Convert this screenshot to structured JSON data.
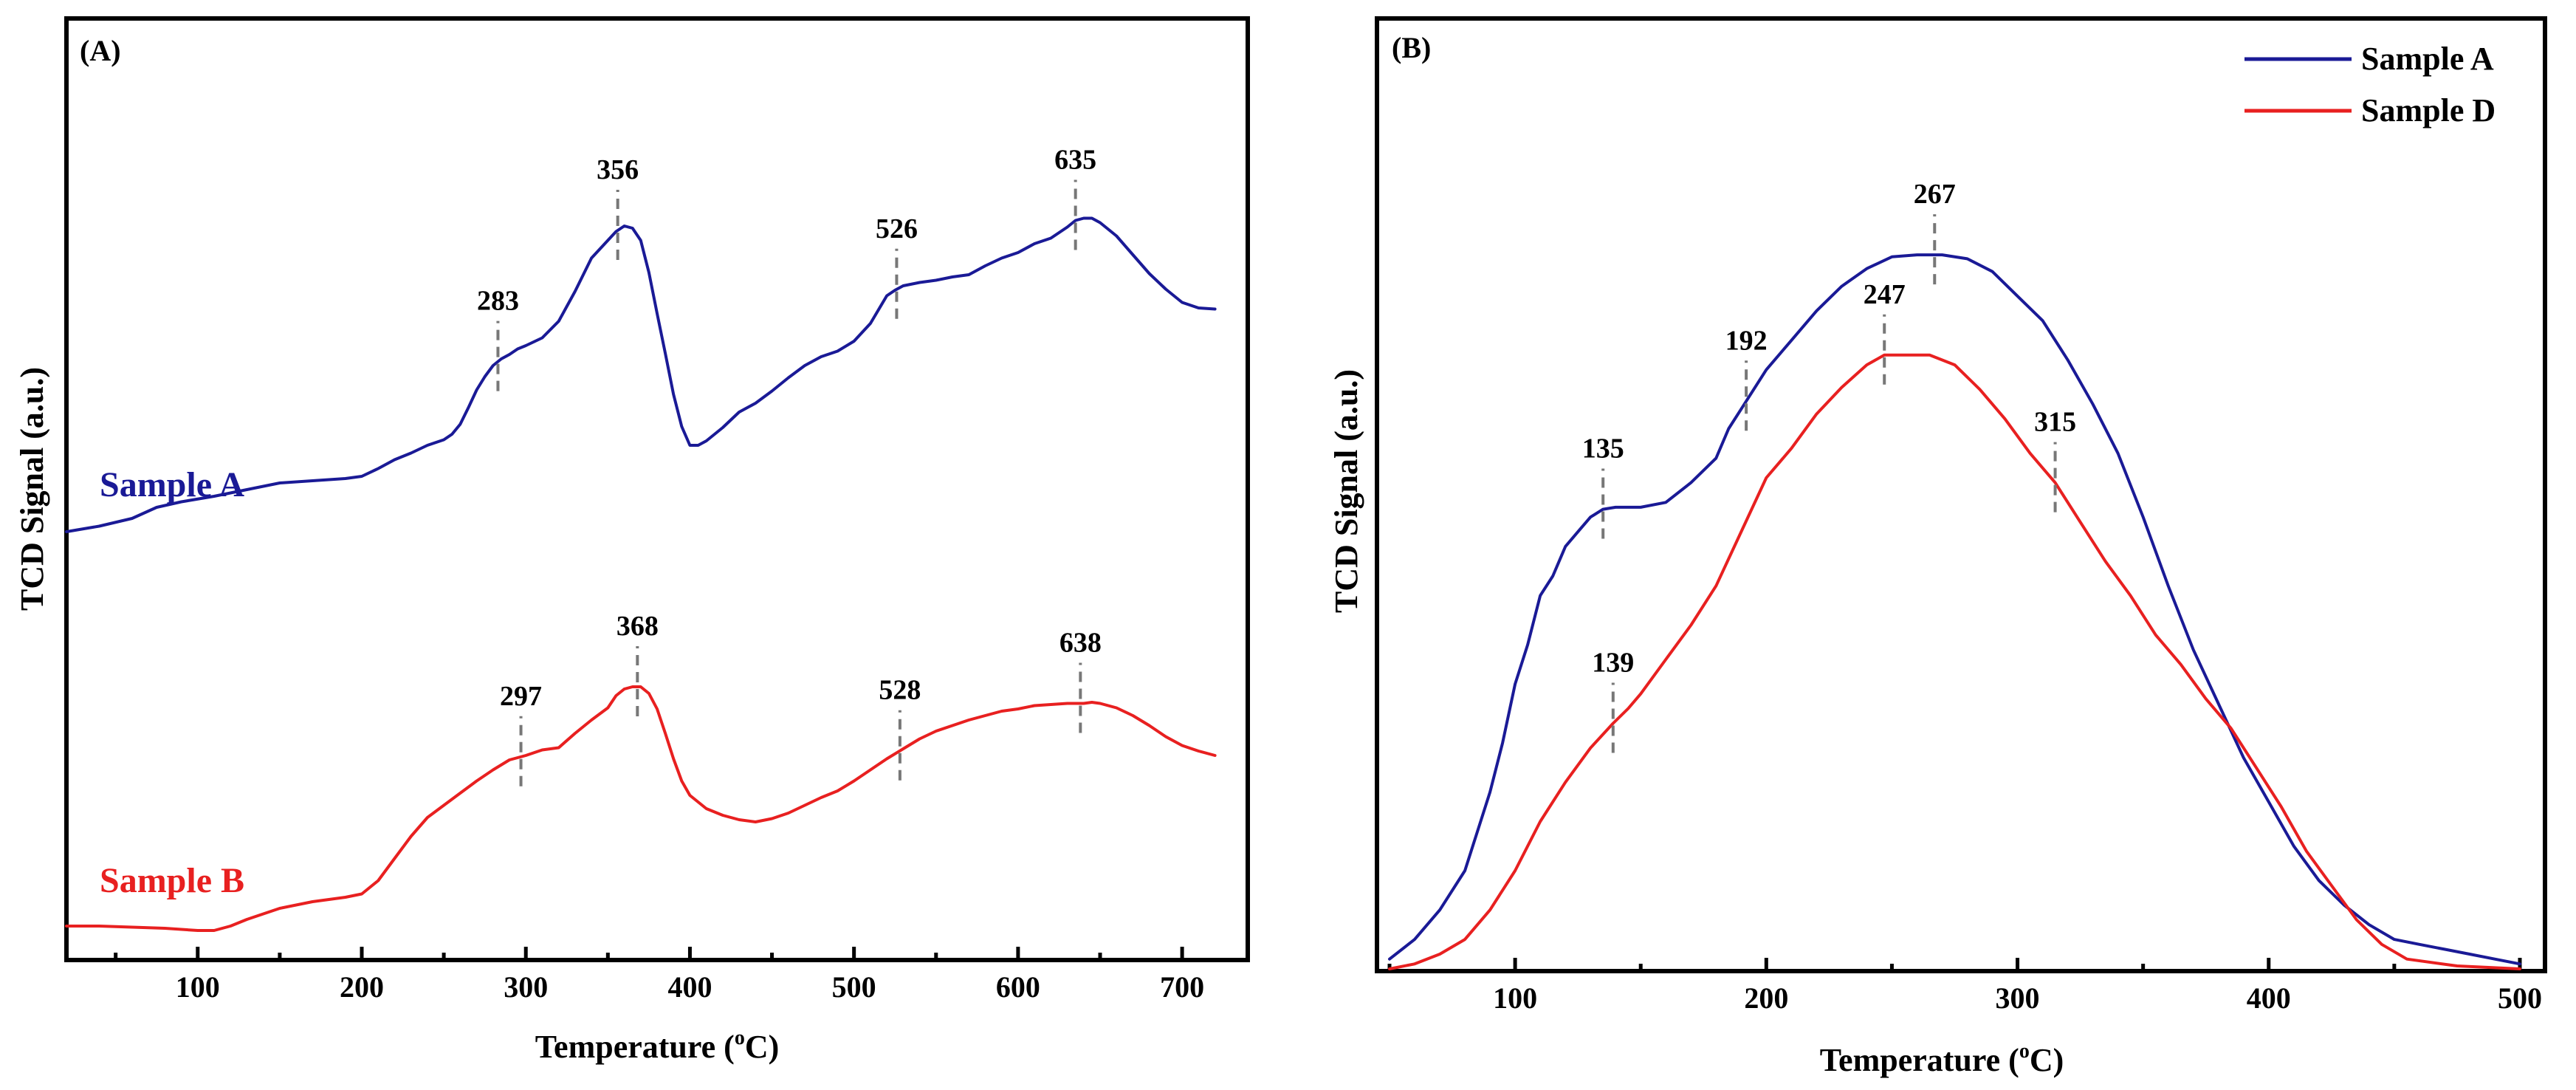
{
  "chart_data": [
    {
      "panel": "(A)",
      "type": "line",
      "xlabel": "Temperature (",
      "xlabel_sup": "o",
      "xlabel_end": "C)",
      "ylabel": "TCD Signal (a.u.)",
      "xlim": [
        20,
        740
      ],
      "ylim": [
        0,
        1
      ],
      "xticks": [
        100,
        200,
        300,
        400,
        500,
        600,
        700
      ],
      "series": [
        {
          "name": "Sample A",
          "color": "#1a1a96",
          "x": [
            20,
            40,
            60,
            75,
            90,
            110,
            130,
            150,
            170,
            190,
            200,
            210,
            220,
            230,
            240,
            250,
            255,
            260,
            265,
            270,
            275,
            280,
            285,
            290,
            295,
            300,
            310,
            320,
            330,
            340,
            350,
            355,
            360,
            365,
            370,
            375,
            380,
            385,
            390,
            395,
            400,
            405,
            410,
            415,
            420,
            430,
            440,
            450,
            460,
            470,
            480,
            490,
            500,
            510,
            520,
            525,
            530,
            540,
            550,
            560,
            570,
            580,
            590,
            600,
            610,
            620,
            630,
            635,
            640,
            645,
            650,
            660,
            670,
            680,
            690,
            700,
            710,
            720
          ],
          "y": [
            0.38,
            0.385,
            0.392,
            0.402,
            0.407,
            0.412,
            0.418,
            0.424,
            0.426,
            0.428,
            0.43,
            0.437,
            0.445,
            0.451,
            0.458,
            0.463,
            0.468,
            0.477,
            0.492,
            0.508,
            0.52,
            0.53,
            0.536,
            0.54,
            0.545,
            0.548,
            0.555,
            0.57,
            0.597,
            0.627,
            0.643,
            0.651,
            0.656,
            0.654,
            0.643,
            0.614,
            0.577,
            0.541,
            0.504,
            0.475,
            0.458,
            0.458,
            0.462,
            0.468,
            0.474,
            0.488,
            0.496,
            0.507,
            0.519,
            0.53,
            0.538,
            0.543,
            0.552,
            0.568,
            0.593,
            0.598,
            0.602,
            0.605,
            0.607,
            0.61,
            0.612,
            0.62,
            0.627,
            0.632,
            0.64,
            0.645,
            0.655,
            0.661,
            0.663,
            0.663,
            0.659,
            0.647,
            0.63,
            0.613,
            0.599,
            0.587,
            0.582,
            0.581
          ]
        },
        {
          "name": "Sample B",
          "color": "#e82020",
          "x": [
            20,
            40,
            60,
            80,
            100,
            110,
            120,
            130,
            150,
            170,
            190,
            200,
            210,
            220,
            230,
            240,
            250,
            260,
            270,
            280,
            290,
            300,
            310,
            320,
            330,
            340,
            350,
            355,
            360,
            365,
            370,
            375,
            380,
            385,
            390,
            395,
            400,
            410,
            420,
            430,
            440,
            450,
            460,
            470,
            480,
            490,
            500,
            510,
            520,
            530,
            540,
            550,
            560,
            570,
            580,
            590,
            600,
            610,
            620,
            630,
            640,
            645,
            650,
            660,
            670,
            680,
            690,
            700,
            710,
            720
          ],
          "y": [
            0.024,
            0.024,
            0.023,
            0.022,
            0.02,
            0.02,
            0.024,
            0.03,
            0.04,
            0.046,
            0.05,
            0.053,
            0.065,
            0.085,
            0.105,
            0.122,
            0.133,
            0.144,
            0.155,
            0.165,
            0.174,
            0.178,
            0.183,
            0.185,
            0.198,
            0.21,
            0.221,
            0.232,
            0.238,
            0.24,
            0.24,
            0.234,
            0.22,
            0.198,
            0.175,
            0.155,
            0.142,
            0.13,
            0.124,
            0.12,
            0.118,
            0.121,
            0.126,
            0.133,
            0.14,
            0.146,
            0.155,
            0.165,
            0.175,
            0.184,
            0.193,
            0.2,
            0.205,
            0.21,
            0.214,
            0.218,
            0.22,
            0.223,
            0.224,
            0.225,
            0.225,
            0.226,
            0.225,
            0.221,
            0.214,
            0.205,
            0.195,
            0.187,
            0.182,
            0.178
          ]
        }
      ],
      "annotations": [
        {
          "text": "283",
          "x": 283,
          "series": 0
        },
        {
          "text": "356",
          "x": 356,
          "series": 0
        },
        {
          "text": "526",
          "x": 526,
          "series": 0
        },
        {
          "text": "635",
          "x": 635,
          "series": 0
        },
        {
          "text": "297",
          "x": 297,
          "series": 1
        },
        {
          "text": "368",
          "x": 368,
          "series": 1
        },
        {
          "text": "528",
          "x": 528,
          "series": 1
        },
        {
          "text": "638",
          "x": 638,
          "series": 1
        }
      ],
      "series_labels": [
        "Sample A",
        "Sample B"
      ]
    },
    {
      "panel": "(B)",
      "type": "line",
      "xlabel": "Temperature (",
      "xlabel_sup": "o",
      "xlabel_end": "C)",
      "ylabel": "TCD Signal (a.u.)",
      "xlim": [
        45,
        510
      ],
      "ylim": [
        0,
        1
      ],
      "xticks": [
        100,
        200,
        300,
        400,
        500
      ],
      "series": [
        {
          "name": "Sample A",
          "color": "#1a1a96",
          "x": [
            50,
            60,
            70,
            80,
            85,
            90,
            95,
            100,
            105,
            110,
            115,
            120,
            125,
            130,
            135,
            140,
            150,
            160,
            170,
            180,
            185,
            190,
            195,
            200,
            210,
            220,
            230,
            240,
            250,
            260,
            270,
            280,
            290,
            300,
            310,
            320,
            330,
            340,
            350,
            360,
            370,
            380,
            390,
            400,
            410,
            420,
            430,
            440,
            450,
            460,
            470,
            480,
            490,
            500
          ],
          "y": [
            0.01,
            0.03,
            0.06,
            0.1,
            0.14,
            0.18,
            0.23,
            0.29,
            0.33,
            0.38,
            0.4,
            0.43,
            0.445,
            0.46,
            0.468,
            0.47,
            0.47,
            0.475,
            0.495,
            0.52,
            0.55,
            0.57,
            0.59,
            0.61,
            0.64,
            0.67,
            0.695,
            0.713,
            0.725,
            0.727,
            0.727,
            0.723,
            0.71,
            0.685,
            0.66,
            0.62,
            0.575,
            0.525,
            0.46,
            0.39,
            0.325,
            0.27,
            0.215,
            0.17,
            0.125,
            0.09,
            0.065,
            0.045,
            0.03,
            0.025,
            0.02,
            0.015,
            0.01,
            0.005
          ]
        },
        {
          "name": "Sample D",
          "color": "#e82020",
          "x": [
            50,
            60,
            70,
            80,
            90,
            100,
            110,
            120,
            130,
            139,
            145,
            150,
            160,
            170,
            180,
            190,
            200,
            210,
            220,
            230,
            240,
            247,
            255,
            265,
            275,
            285,
            295,
            305,
            315,
            325,
            335,
            345,
            355,
            365,
            375,
            385,
            395,
            405,
            415,
            425,
            435,
            445,
            455,
            475,
            500
          ],
          "y": [
            0.0,
            0.005,
            0.015,
            0.03,
            0.06,
            0.1,
            0.15,
            0.19,
            0.225,
            0.25,
            0.265,
            0.28,
            0.315,
            0.35,
            0.39,
            0.445,
            0.5,
            0.53,
            0.565,
            0.592,
            0.615,
            0.625,
            0.625,
            0.625,
            0.615,
            0.59,
            0.56,
            0.525,
            0.495,
            0.455,
            0.415,
            0.38,
            0.34,
            0.31,
            0.275,
            0.245,
            0.205,
            0.165,
            0.12,
            0.085,
            0.05,
            0.025,
            0.01,
            0.003,
            0.0
          ]
        }
      ],
      "annotations": [
        {
          "text": "135",
          "x": 135,
          "series": 0
        },
        {
          "text": "192",
          "x": 192,
          "series": 0
        },
        {
          "text": "267",
          "x": 267,
          "series": 0
        },
        {
          "text": "139",
          "x": 139,
          "series": 1
        },
        {
          "text": "247",
          "x": 247,
          "series": 1
        },
        {
          "text": "315",
          "x": 315,
          "series": 1
        }
      ],
      "legend": [
        "Sample A",
        "Sample D"
      ]
    }
  ]
}
